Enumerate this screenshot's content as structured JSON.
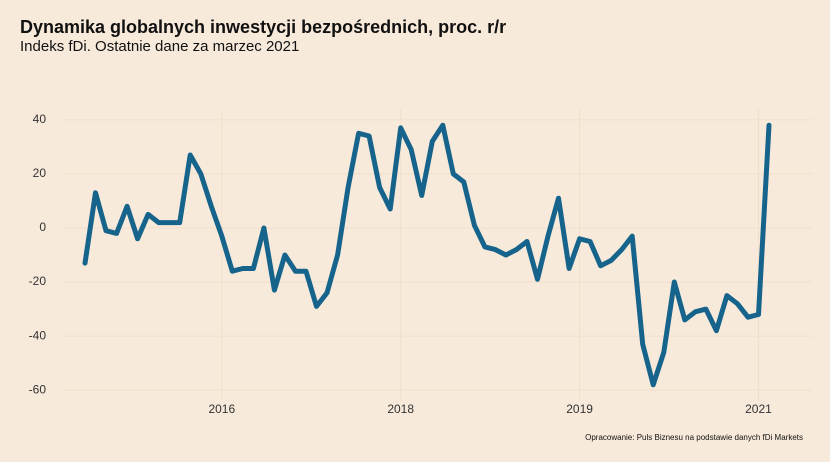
{
  "chart_data": {
    "type": "line",
    "title": "Dynamika globalnych inwestycji bezpośrednich, proc. r/r",
    "subtitle": "Indeks fDi. Ostatnie dane za marzec 2021",
    "source": "Opracowanie: Puls Biznesu na podstawie danych fDi Markets",
    "categories": [
      null,
      null,
      null,
      null,
      null,
      null,
      null,
      null,
      null,
      null,
      null,
      null,
      null,
      "2016",
      null,
      null,
      null,
      null,
      null,
      null,
      null,
      null,
      null,
      null,
      null,
      null,
      null,
      null,
      null,
      null,
      "2018",
      null,
      null,
      null,
      null,
      null,
      null,
      null,
      null,
      null,
      null,
      null,
      null,
      null,
      null,
      null,
      null,
      "2019",
      null,
      null,
      null,
      null,
      null,
      null,
      null,
      null,
      null,
      null,
      null,
      null,
      null,
      null,
      null,
      null,
      "2021",
      null
    ],
    "series": [
      {
        "name": "fDi",
        "color": "#16648c",
        "values": [
          -13,
          13,
          -1,
          -2,
          8,
          -4,
          5,
          2,
          2,
          2,
          27,
          20,
          8,
          -3,
          -16,
          -15,
          -15,
          0,
          -23,
          -10,
          -16,
          -16,
          -29,
          -24,
          -10,
          15,
          35,
          34,
          15,
          7,
          37,
          29,
          12,
          32,
          38,
          20,
          17,
          1,
          -7,
          -8,
          -10,
          -8,
          -5,
          -19,
          -3,
          11,
          -15,
          -4,
          -5,
          -14,
          -12,
          -8,
          -3,
          -43,
          -58,
          -46,
          -20,
          -34,
          -31,
          -30,
          -38,
          -25,
          -28,
          -33,
          -32,
          38
        ]
      }
    ],
    "ylim": [
      -64,
      44
    ],
    "yticks": [
      -60,
      -40,
      -20,
      0,
      20,
      40
    ],
    "grid": true
  }
}
